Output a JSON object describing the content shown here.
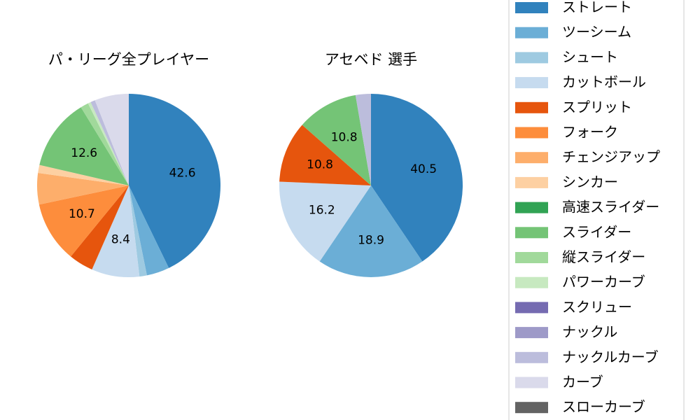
{
  "chart_data": [
    {
      "type": "pie",
      "title": "パ・リーグ全プレイヤー",
      "slices": [
        {
          "label": "ストレート",
          "value": 42.6,
          "color": "#3182bd",
          "show_label": true
        },
        {
          "label": "ツーシーム",
          "value": 4.0,
          "color": "#6baed6",
          "show_label": false
        },
        {
          "label": "シュート",
          "value": 1.3,
          "color": "#9ecae1",
          "show_label": false
        },
        {
          "label": "カットボール",
          "value": 8.4,
          "color": "#c6dbef",
          "show_label": true
        },
        {
          "label": "スプリット",
          "value": 4.3,
          "color": "#e6550d",
          "show_label": false
        },
        {
          "label": "フォーク",
          "value": 10.7,
          "color": "#fd8d3c",
          "show_label": true
        },
        {
          "label": "チェンジアップ",
          "value": 5.5,
          "color": "#fdae6b",
          "show_label": false
        },
        {
          "label": "シンカー",
          "value": 1.4,
          "color": "#fdd0a2",
          "show_label": false
        },
        {
          "label": "スライダー",
          "value": 12.6,
          "color": "#74c476",
          "show_label": true
        },
        {
          "label": "縦スライダー",
          "value": 1.4,
          "color": "#a1d99b",
          "show_label": false
        },
        {
          "label": "パワーカーブ",
          "value": 0.5,
          "color": "#c7e9c0",
          "show_label": false
        },
        {
          "label": "ナックルカーブ",
          "value": 0.8,
          "color": "#bcbddc",
          "show_label": false
        },
        {
          "label": "カーブ",
          "value": 6.0,
          "color": "#dadaeb",
          "show_label": false
        }
      ]
    },
    {
      "type": "pie",
      "title": "アセベド  選手",
      "slices": [
        {
          "label": "ストレート",
          "value": 40.5,
          "color": "#3182bd",
          "show_label": true
        },
        {
          "label": "ツーシーム",
          "value": 18.9,
          "color": "#6baed6",
          "show_label": true
        },
        {
          "label": "カットボール",
          "value": 16.2,
          "color": "#c6dbef",
          "show_label": true
        },
        {
          "label": "スプリット",
          "value": 10.8,
          "color": "#e6550d",
          "show_label": true
        },
        {
          "label": "スライダー",
          "value": 10.8,
          "color": "#74c476",
          "show_label": true
        },
        {
          "label": "ナックルカーブ",
          "value": 2.7,
          "color": "#bcbddc",
          "show_label": false
        }
      ]
    }
  ],
  "legend": {
    "placement": "right",
    "items": [
      {
        "label": "ストレート",
        "color": "#3182bd"
      },
      {
        "label": "ツーシーム",
        "color": "#6baed6"
      },
      {
        "label": "シュート",
        "color": "#9ecae1"
      },
      {
        "label": "カットボール",
        "color": "#c6dbef"
      },
      {
        "label": "スプリット",
        "color": "#e6550d"
      },
      {
        "label": "フォーク",
        "color": "#fd8d3c"
      },
      {
        "label": "チェンジアップ",
        "color": "#fdae6b"
      },
      {
        "label": "シンカー",
        "color": "#fdd0a2"
      },
      {
        "label": "高速スライダー",
        "color": "#31a354"
      },
      {
        "label": "スライダー",
        "color": "#74c476"
      },
      {
        "label": "縦スライダー",
        "color": "#a1d99b"
      },
      {
        "label": "パワーカーブ",
        "color": "#c7e9c0"
      },
      {
        "label": "スクリュー",
        "color": "#756bb1"
      },
      {
        "label": "ナックル",
        "color": "#9e9ac8"
      },
      {
        "label": "ナックルカーブ",
        "color": "#bcbddc"
      },
      {
        "label": "カーブ",
        "color": "#dadaeb"
      },
      {
        "label": "スローカーブ",
        "color": "#636363"
      }
    ]
  }
}
